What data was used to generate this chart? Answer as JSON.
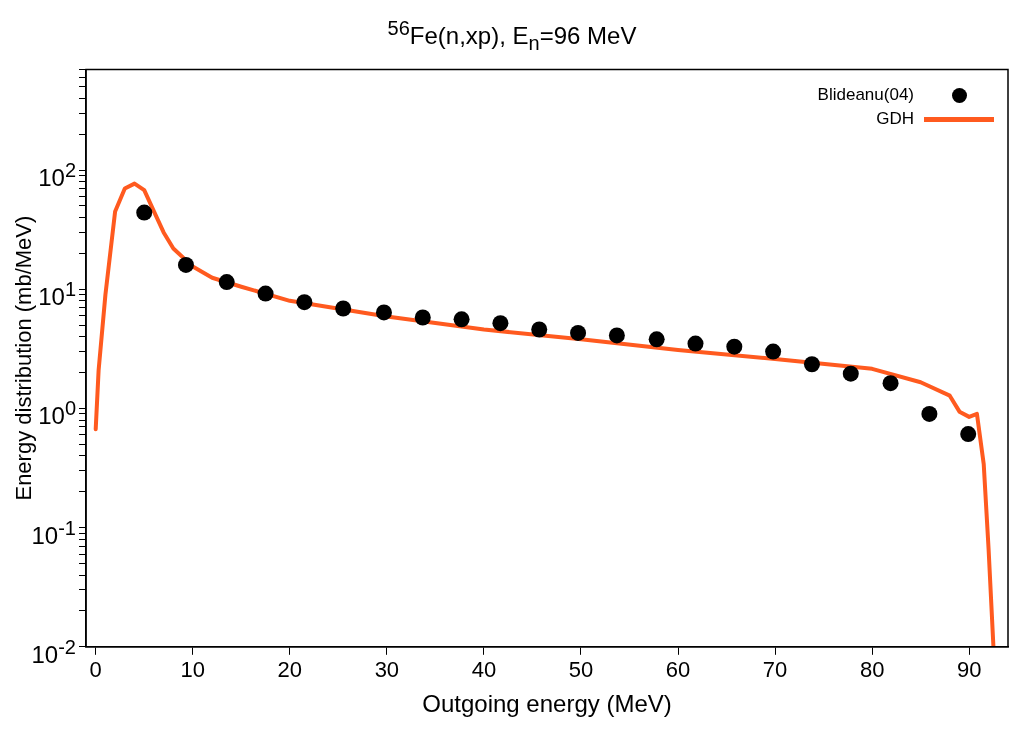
{
  "chart_data": {
    "type": "scatter",
    "title": "$^{56}$Fe(n,xp),  E$_{n}$=96 MeV",
    "xlabel": "Outgoing energy (MeV)",
    "ylabel": "Energy distribution (mb/MeV)",
    "log": "y",
    "legend": "top right",
    "xlim": [
      -1,
      94
    ],
    "xticks": [
      0,
      10,
      20,
      30,
      40,
      50,
      60,
      70,
      80,
      90
    ],
    "ylim": [
      0.01,
      700
    ],
    "yticks": [
      {
        "value": 0.01,
        "label": "10$^{-2}$"
      },
      {
        "value": 0.02,
        "label": null
      },
      {
        "value": 0.03,
        "label": null
      },
      {
        "value": 0.04,
        "label": null
      },
      {
        "value": 0.05,
        "label": null
      },
      {
        "value": 0.06,
        "label": null
      },
      {
        "value": 0.07,
        "label": null
      },
      {
        "value": 0.08,
        "label": null
      },
      {
        "value": 0.09,
        "label": null
      },
      {
        "value": 0.1,
        "label": "10$^{-1}$"
      },
      {
        "value": 0.2,
        "label": null
      },
      {
        "value": 0.3,
        "label": null
      },
      {
        "value": 0.4,
        "label": null
      },
      {
        "value": 0.5,
        "label": null
      },
      {
        "value": 0.6,
        "label": null
      },
      {
        "value": 0.7,
        "label": null
      },
      {
        "value": 0.8,
        "label": null
      },
      {
        "value": 0.9,
        "label": null
      },
      {
        "value": 1,
        "label": "10$^{0}$"
      },
      {
        "value": 2,
        "label": null
      },
      {
        "value": 3,
        "label": null
      },
      {
        "value": 4,
        "label": null
      },
      {
        "value": 5,
        "label": null
      },
      {
        "value": 6,
        "label": null
      },
      {
        "value": 7,
        "label": null
      },
      {
        "value": 8,
        "label": null
      },
      {
        "value": 9,
        "label": null
      },
      {
        "value": 10,
        "label": "10$^{1}$"
      },
      {
        "value": 20,
        "label": null
      },
      {
        "value": 30,
        "label": null
      },
      {
        "value": 40,
        "label": null
      },
      {
        "value": 50,
        "label": null
      },
      {
        "value": 60,
        "label": null
      },
      {
        "value": 70,
        "label": null
      },
      {
        "value": 80,
        "label": null
      },
      {
        "value": 90,
        "label": null
      },
      {
        "value": 100,
        "label": "10$^{2}$"
      },
      {
        "value": 200,
        "label": null
      },
      {
        "value": 300,
        "label": null
      },
      {
        "value": 400,
        "label": null
      },
      {
        "value": 500,
        "label": null
      },
      {
        "value": 600,
        "label": null
      },
      {
        "value": 700,
        "label": null
      }
    ],
    "series": [
      {
        "name": "Blideanu(04)",
        "type": "scatter",
        "marker": "circle",
        "color": "#000000",
        "x": [
          5,
          9.3,
          13.5,
          17.5,
          21.5,
          25.5,
          29.7,
          33.7,
          37.7,
          41.7,
          45.7,
          49.7,
          53.7,
          57.8,
          61.8,
          65.8,
          69.8,
          73.8,
          77.8,
          81.9,
          85.9,
          89.9
        ],
        "values": [
          44,
          16,
          11.5,
          9.2,
          7.8,
          6.9,
          6.4,
          5.8,
          5.6,
          5.2,
          4.6,
          4.3,
          4.1,
          3.8,
          3.5,
          3.3,
          3.0,
          2.35,
          1.96,
          1.63,
          0.9,
          0.61
        ]
      },
      {
        "name": "GDH",
        "type": "line",
        "marker": "none",
        "color": "#ff5a1f",
        "x": [
          0,
          0.3,
          1,
          2,
          3,
          4,
          5,
          6,
          7,
          8,
          10,
          12,
          15,
          20,
          30,
          40,
          50,
          60,
          70,
          80,
          85,
          88,
          89,
          90,
          90.8,
          91.5,
          92,
          92.5
        ],
        "values": [
          0.67,
          2.1,
          9,
          45,
          70,
          77,
          68,
          45,
          30,
          22,
          15.5,
          12.5,
          10.5,
          8,
          5.9,
          4.6,
          3.8,
          3.1,
          2.6,
          2.15,
          1.66,
          1.28,
          0.94,
          0.85,
          0.9,
          0.34,
          0.066,
          0.01
        ]
      }
    ]
  }
}
